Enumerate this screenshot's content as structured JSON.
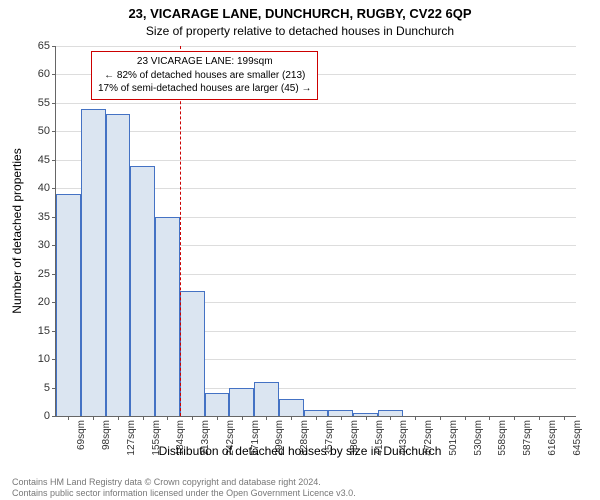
{
  "chart": {
    "type": "histogram",
    "title_main": "23, VICARAGE LANE, DUNCHURCH, RUGBY, CV22 6QP",
    "title_sub": "Size of property relative to detached houses in Dunchurch",
    "ylabel": "Number of detached properties",
    "xlabel": "Distribution of detached houses by size in Dunchurch",
    "ylim": [
      0,
      65
    ],
    "ytick_step": 5,
    "categories": [
      "69sqm",
      "98sqm",
      "127sqm",
      "155sqm",
      "184sqm",
      "213sqm",
      "242sqm",
      "271sqm",
      "299sqm",
      "328sqm",
      "357sqm",
      "386sqm",
      "415sqm",
      "443sqm",
      "472sqm",
      "501sqm",
      "530sqm",
      "558sqm",
      "587sqm",
      "616sqm",
      "645sqm"
    ],
    "values": [
      39,
      54,
      53,
      44,
      35,
      22,
      4,
      5,
      6,
      3,
      1,
      1,
      0.5,
      1,
      0,
      0,
      0,
      0,
      0,
      0,
      0
    ],
    "bar_fill": "#dbe5f1",
    "bar_stroke": "#4472c4",
    "bar_width_ratio": 1.0,
    "grid_color": "#dddddd",
    "axis_color": "#666666",
    "label_color": "#333333",
    "title_fontsize": 13,
    "subtitle_fontsize": 12,
    "axis_label_fontsize": 12,
    "tick_fontsize": 11,
    "background_color": "#ffffff",
    "marker": {
      "x_value_sqm": 199,
      "color": "#cc0000",
      "box": {
        "line1": "23 VICARAGE LANE: 199sqm",
        "line2": "← 82% of detached houses are smaller (213)",
        "line3": "17% of semi-detached houses are larger (45) →"
      }
    }
  },
  "footer": {
    "line1": "Contains HM Land Registry data © Crown copyright and database right 2024.",
    "line2": "Contains public sector information licensed under the Open Government Licence v3.0."
  }
}
